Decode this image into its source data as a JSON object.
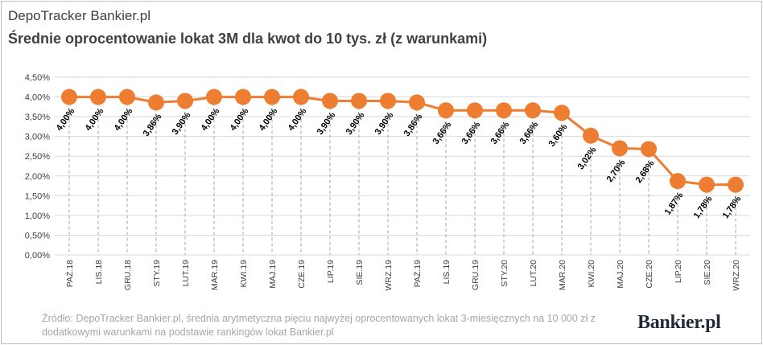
{
  "header": {
    "kicker": "DepoTracker Bankier.pl",
    "title": "Średnie oprocentowanie lokat 3M dla kwot do 10 tys. zł (z warunkami)"
  },
  "footer": {
    "source": "Źródło: DepoTracker Bankier.pl, średnia arytmetyczna pięciu najwyżej oprocentowanych lokat 3-miesięcznych na 10 000 zł z dodatkowymi warunkami na podstawie rankingów lokat Bankier.pl",
    "logo": "Bankier.pl"
  },
  "colors": {
    "series": "#ED7D31",
    "grid": "#d9d9d9",
    "axis_text": "#404040",
    "label_text": "#000000"
  },
  "chart_data": {
    "type": "line",
    "title": "Średnie oprocentowanie lokat 3M dla kwot do 10 tys. zł (z warunkami)",
    "categories": [
      "PAŹ.18",
      "LIS.18",
      "GRU.18",
      "STY.19",
      "LUT.19",
      "MAR.19",
      "KWI.19",
      "MAJ.19",
      "CZE.19",
      "LIP.19",
      "SIE.19",
      "WRZ.19",
      "PAŹ.19",
      "LIS.19",
      "GRU.19",
      "STY.20",
      "LUT.20",
      "MAR.20",
      "KWI.20",
      "MAJ.20",
      "CZE.20",
      "LIP.20",
      "SIE.20",
      "WRZ.20"
    ],
    "values": [
      4.0,
      4.0,
      4.0,
      3.86,
      3.9,
      4.0,
      4.0,
      4.0,
      4.0,
      3.9,
      3.9,
      3.9,
      3.86,
      3.66,
      3.66,
      3.66,
      3.66,
      3.6,
      3.02,
      2.7,
      2.68,
      1.87,
      1.78,
      1.78
    ],
    "data_labels": [
      "4,00%",
      "4,00%",
      "4,00%",
      "3,86%",
      "3,90%",
      "4,00%",
      "4,00%",
      "4,00%",
      "4,00%",
      "3,90%",
      "3,90%",
      "3,90%",
      "3,86%",
      "3,66%",
      "3,66%",
      "3,66%",
      "3,66%",
      "3,60%",
      "3,02%",
      "2,70%",
      "2,68%",
      "1,87%",
      "1,78%",
      "1,78%"
    ],
    "y_ticks": [
      "0,00%",
      "0,50%",
      "1,00%",
      "1,50%",
      "2,00%",
      "2,50%",
      "3,00%",
      "3,50%",
      "4,00%",
      "4,50%"
    ],
    "ylim": [
      0,
      4.5
    ],
    "y_step": 0.5,
    "grid": true,
    "drop_lines": true,
    "legend": "none"
  }
}
